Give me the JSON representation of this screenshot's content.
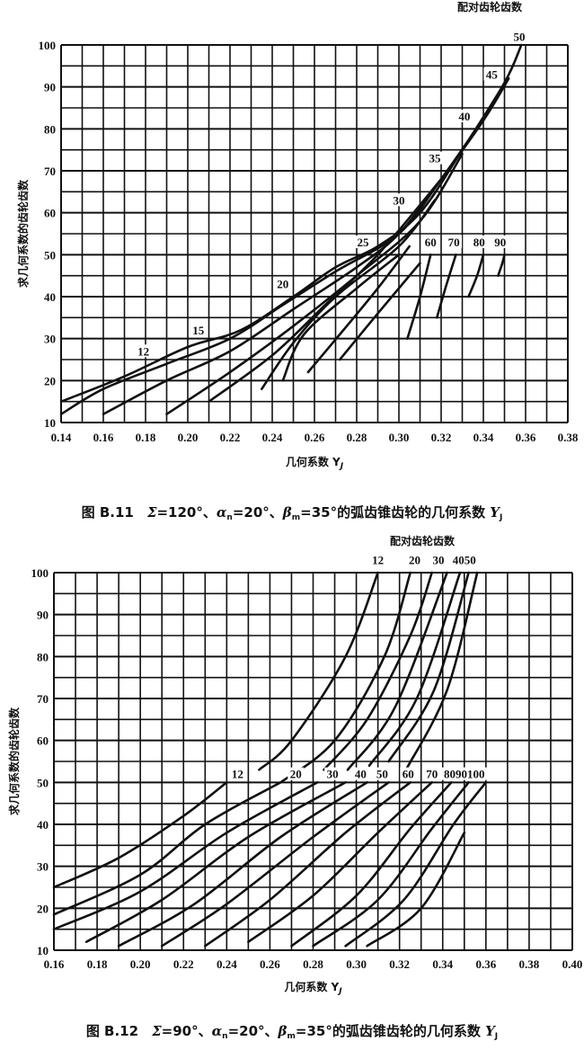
{
  "chart_data": [
    {
      "type": "line",
      "header": "配对齿轮齿数",
      "xlabel": "几何系数 Y",
      "xlabel_sub": "J",
      "ylabel": "求几何系数的齿轮齿数",
      "xlim": [
        0.14,
        0.38
      ],
      "ylim": [
        10,
        100
      ],
      "grid": true,
      "x_ticks": [
        "0.14",
        "0.16",
        "0.18",
        "0.20",
        "0.22",
        "0.24",
        "0.26",
        "0.28",
        "0.30",
        "0.32",
        "0.34",
        "0.36",
        "0.38"
      ],
      "y_ticks": [
        "10",
        "20",
        "30",
        "40",
        "50",
        "60",
        "70",
        "80",
        "90",
        "100"
      ],
      "caption": [
        "图 B.11　",
        "Σ",
        "=120°、",
        "α",
        "n",
        "=20°、",
        "β",
        "m",
        "=35°的弧齿锥齿轮的几何系数 ",
        "Y",
        "J"
      ],
      "curve_labels": [
        {
          "text": "12",
          "x": 0.179,
          "y": 26
        },
        {
          "text": "15",
          "x": 0.205,
          "y": 31
        },
        {
          "text": "20",
          "x": 0.245,
          "y": 42
        },
        {
          "text": "25",
          "x": 0.283,
          "y": 52
        },
        {
          "text": "30",
          "x": 0.3,
          "y": 62
        },
        {
          "text": "35",
          "x": 0.317,
          "y": 72
        },
        {
          "text": "40",
          "x": 0.331,
          "y": 82
        },
        {
          "text": "45",
          "x": 0.344,
          "y": 92
        },
        {
          "text": "50",
          "x": 0.357,
          "y": 101
        },
        {
          "text": "60",
          "x": 0.315,
          "y": 52
        },
        {
          "text": "70",
          "x": 0.326,
          "y": 52
        },
        {
          "text": "80",
          "x": 0.338,
          "y": 52
        },
        {
          "text": "90",
          "x": 0.348,
          "y": 52
        }
      ],
      "series": [
        {
          "points": [
            [
              0.14,
              15
            ],
            [
              0.17,
              21
            ],
            [
              0.2,
              28
            ],
            [
              0.225,
              32
            ],
            [
              0.25,
              40
            ],
            [
              0.27,
              47
            ],
            [
              0.29,
              52
            ],
            [
              0.31,
              60
            ],
            [
              0.33,
              75
            ],
            [
              0.35,
              91
            ],
            [
              0.358,
              100
            ]
          ]
        },
        {
          "points": [
            [
              0.14,
              12
            ],
            [
              0.16,
              18
            ],
            [
              0.19,
              24
            ],
            [
              0.22,
              30
            ],
            [
              0.245,
              38
            ],
            [
              0.27,
              46
            ],
            [
              0.3,
              55
            ],
            [
              0.32,
              68
            ],
            [
              0.34,
              82
            ],
            [
              0.352,
              92
            ]
          ]
        },
        {
          "points": [
            [
              0.16,
              12
            ],
            [
              0.19,
              20
            ],
            [
              0.22,
              27
            ],
            [
              0.25,
              37
            ],
            [
              0.28,
              47
            ],
            [
              0.3,
              55
            ],
            [
              0.32,
              68
            ],
            [
              0.338,
              81
            ]
          ]
        },
        {
          "points": [
            [
              0.19,
              12
            ],
            [
              0.22,
              22
            ],
            [
              0.25,
              33
            ],
            [
              0.28,
              45
            ],
            [
              0.31,
              58
            ],
            [
              0.33,
              74
            ]
          ]
        },
        {
          "points": [
            [
              0.21,
              15
            ],
            [
              0.24,
              26
            ],
            [
              0.265,
              38
            ],
            [
              0.29,
              50
            ],
            [
              0.32,
              68
            ]
          ]
        },
        {
          "points": [
            [
              0.235,
              18
            ],
            [
              0.25,
              29
            ],
            [
              0.27,
              40
            ],
            [
              0.3,
              52
            ],
            [
              0.317,
              63
            ]
          ]
        },
        {
          "points": [
            [
              0.245,
              20
            ],
            [
              0.255,
              31
            ],
            [
              0.28,
              42
            ],
            [
              0.3,
              50
            ]
          ]
        },
        {
          "points": [
            [
              0.257,
              22
            ],
            [
              0.272,
              31
            ],
            [
              0.29,
              42
            ],
            [
              0.305,
              52
            ]
          ]
        },
        {
          "points": [
            [
              0.272,
              25
            ],
            [
              0.29,
              36
            ],
            [
              0.31,
              48
            ]
          ]
        },
        {
          "points": [
            [
              0.304,
              30
            ],
            [
              0.31,
              40
            ],
            [
              0.315,
              50
            ]
          ]
        },
        {
          "points": [
            [
              0.318,
              35
            ],
            [
              0.322,
              42
            ],
            [
              0.327,
              50
            ]
          ]
        },
        {
          "points": [
            [
              0.333,
              40
            ],
            [
              0.337,
              45
            ],
            [
              0.34,
              50
            ]
          ]
        },
        {
          "points": [
            [
              0.347,
              45
            ],
            [
              0.349,
              48
            ],
            [
              0.35,
              50
            ]
          ]
        }
      ]
    },
    {
      "type": "line",
      "header": "配对齿轮齿数",
      "xlabel": "几何系数 Y",
      "xlabel_sub": "J",
      "ylabel": "求几何系数的齿轮齿数",
      "xlim": [
        0.16,
        0.4
      ],
      "ylim": [
        10,
        100
      ],
      "grid": true,
      "x_ticks": [
        "0.16",
        "0.18",
        "0.20",
        "0.22",
        "0.24",
        "0.26",
        "0.28",
        "0.30",
        "0.32",
        "0.34",
        "0.36",
        "0.38",
        "0.40"
      ],
      "y_ticks": [
        "10",
        "20",
        "30",
        "40",
        "50",
        "60",
        "70",
        "80",
        "90",
        "100"
      ],
      "caption": [
        "图 B.12　",
        "Σ",
        "=90°、",
        "α",
        "n",
        "=20°、",
        "β",
        "m",
        "=35°的弧齿锥齿轮的几何系数 ",
        "Y",
        "J"
      ],
      "curve_labels": [
        {
          "text": "12",
          "x": 0.31,
          "y": 102
        },
        {
          "text": "20",
          "x": 0.327,
          "y": 102
        },
        {
          "text": "30",
          "x": 0.338,
          "y": 102
        },
        {
          "text": "4050",
          "x": 0.35,
          "y": 102
        },
        {
          "text": "12",
          "x": 0.245,
          "y": 51
        },
        {
          "text": "20",
          "x": 0.272,
          "y": 51
        },
        {
          "text": "30",
          "x": 0.289,
          "y": 51
        },
        {
          "text": "40",
          "x": 0.302,
          "y": 51
        },
        {
          "text": "50",
          "x": 0.312,
          "y": 51
        },
        {
          "text": "60",
          "x": 0.324,
          "y": 51
        },
        {
          "text": "70",
          "x": 0.335,
          "y": 51
        },
        {
          "text": "8090100",
          "x": 0.35,
          "y": 51
        }
      ],
      "series": [
        {
          "points": [
            [
              0.16,
              25
            ],
            [
              0.19,
              32
            ],
            [
              0.22,
              42
            ],
            [
              0.24,
              50
            ]
          ]
        },
        {
          "points": [
            [
              0.16,
              18.5
            ],
            [
              0.2,
              28
            ],
            [
              0.23,
              40
            ],
            [
              0.265,
              50
            ]
          ]
        },
        {
          "points": [
            [
              0.16,
              15
            ],
            [
              0.2,
              24
            ],
            [
              0.24,
              38
            ],
            [
              0.282,
              50
            ]
          ]
        },
        {
          "points": [
            [
              0.175,
              12
            ],
            [
              0.21,
              22
            ],
            [
              0.25,
              37
            ],
            [
              0.295,
              50
            ]
          ]
        },
        {
          "points": [
            [
              0.19,
              11
            ],
            [
              0.225,
              21
            ],
            [
              0.265,
              37
            ],
            [
              0.305,
              50
            ]
          ]
        },
        {
          "points": [
            [
              0.21,
              11
            ],
            [
              0.24,
              21
            ],
            [
              0.28,
              37
            ],
            [
              0.315,
              50
            ]
          ]
        },
        {
          "points": [
            [
              0.23,
              11
            ],
            [
              0.26,
              22
            ],
            [
              0.295,
              38
            ],
            [
              0.325,
              50
            ]
          ]
        },
        {
          "points": [
            [
              0.25,
              12
            ],
            [
              0.28,
              23
            ],
            [
              0.31,
              38
            ],
            [
              0.335,
              50
            ]
          ]
        },
        {
          "points": [
            [
              0.27,
              11
            ],
            [
              0.3,
              23
            ],
            [
              0.325,
              39
            ],
            [
              0.344,
              50
            ]
          ]
        },
        {
          "points": [
            [
              0.28,
              11
            ],
            [
              0.31,
              22
            ],
            [
              0.335,
              39
            ],
            [
              0.352,
              50
            ]
          ]
        },
        {
          "points": [
            [
              0.295,
              11
            ],
            [
              0.322,
              22
            ],
            [
              0.345,
              40
            ],
            [
              0.36,
              50
            ]
          ]
        },
        {
          "points": [
            [
              0.305,
              11
            ],
            [
              0.33,
              20
            ],
            [
              0.35,
              38
            ]
          ]
        },
        {
          "points": [
            [
              0.255,
              53
            ],
            [
              0.27,
              60
            ],
            [
              0.295,
              80
            ],
            [
              0.31,
              100
            ]
          ]
        },
        {
          "points": [
            [
              0.265,
              50
            ],
            [
              0.29,
              60
            ],
            [
              0.313,
              80
            ],
            [
              0.325,
              100
            ]
          ]
        },
        {
          "points": [
            [
              0.285,
              53
            ],
            [
              0.305,
              65
            ],
            [
              0.325,
              85
            ],
            [
              0.335,
              100
            ]
          ]
        },
        {
          "points": [
            [
              0.296,
              53
            ],
            [
              0.318,
              68
            ],
            [
              0.342,
              100
            ]
          ]
        },
        {
          "points": [
            [
              0.306,
              54
            ],
            [
              0.328,
              70
            ],
            [
              0.348,
              100
            ]
          ]
        },
        {
          "points": [
            [
              0.315,
              55
            ],
            [
              0.336,
              72
            ],
            [
              0.352,
              100
            ]
          ]
        },
        {
          "points": [
            [
              0.323,
              53
            ],
            [
              0.342,
              72
            ],
            [
              0.356,
              100
            ]
          ]
        }
      ]
    }
  ]
}
